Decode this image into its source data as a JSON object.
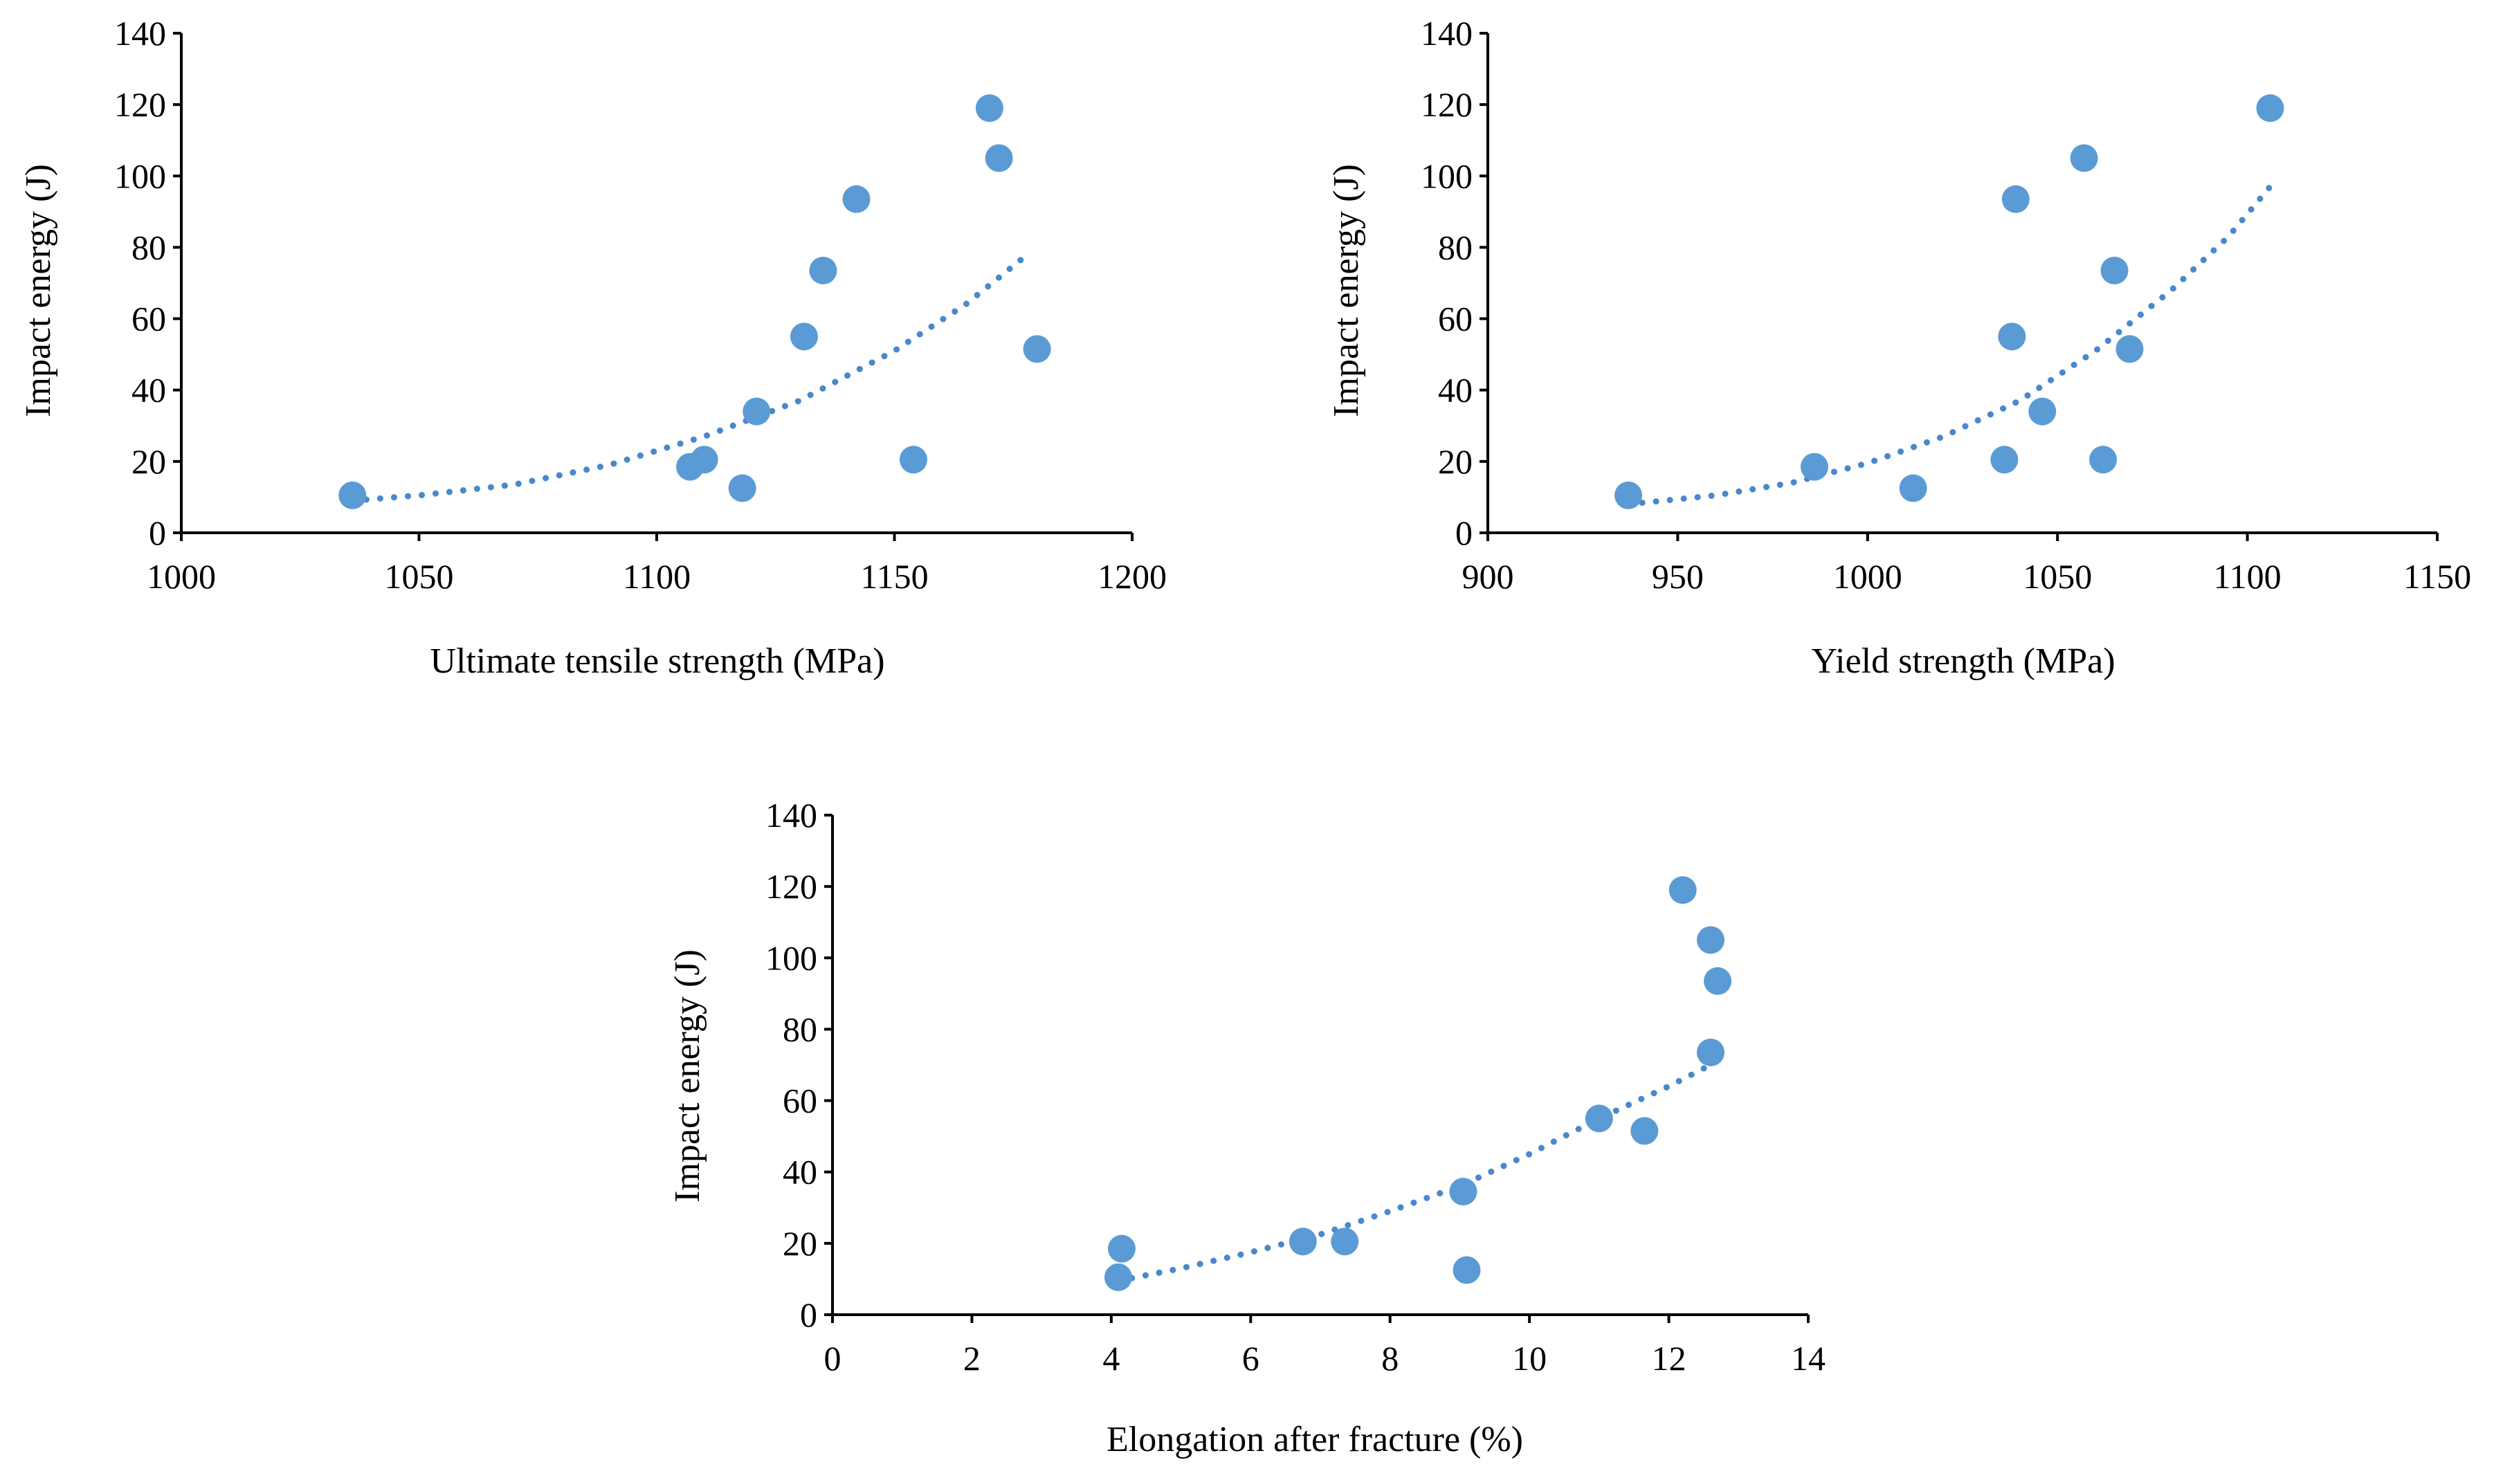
{
  "colors": {
    "marker": "#5B9BD5",
    "trendline": "#4A88CC",
    "axis": "#000000"
  },
  "chart_data": [
    {
      "type": "scatter",
      "name": "uts",
      "xlabel": "Ultimate  tensile strength (MPa)",
      "ylabel": "Impact   energy (J)",
      "xlim": [
        1000,
        1200
      ],
      "ylim": [
        0,
        140
      ],
      "xticks": [
        1000,
        1050,
        1100,
        1150,
        1200
      ],
      "yticks": [
        0,
        20,
        40,
        60,
        80,
        100,
        120,
        140
      ],
      "grid": false,
      "points": [
        {
          "x": 1036,
          "y": 10.5
        },
        {
          "x": 1107,
          "y": 18.5
        },
        {
          "x": 1110,
          "y": 20.5
        },
        {
          "x": 1118,
          "y": 12.5
        },
        {
          "x": 1121,
          "y": 34
        },
        {
          "x": 1131,
          "y": 55
        },
        {
          "x": 1135,
          "y": 73.5
        },
        {
          "x": 1142,
          "y": 93.5
        },
        {
          "x": 1154,
          "y": 20.5
        },
        {
          "x": 1170,
          "y": 119
        },
        {
          "x": 1172,
          "y": 105
        },
        {
          "x": 1180,
          "y": 51.5
        }
      ],
      "trendline": {
        "type": "exponential",
        "x_range": [
          1036,
          1178
        ],
        "points": [
          {
            "x": 1036,
            "y": 9
          },
          {
            "x": 1050,
            "y": 10.5
          },
          {
            "x": 1070,
            "y": 13.5
          },
          {
            "x": 1090,
            "y": 19
          },
          {
            "x": 1110,
            "y": 27
          },
          {
            "x": 1130,
            "y": 37
          },
          {
            "x": 1150,
            "y": 51
          },
          {
            "x": 1165,
            "y": 64
          },
          {
            "x": 1178,
            "y": 78
          }
        ]
      }
    },
    {
      "type": "scatter",
      "name": "ys",
      "xlabel": "Yield  strength (MPa)",
      "ylabel": "Impact   energy (J)",
      "xlim": [
        900,
        1150
      ],
      "ylim": [
        0,
        140
      ],
      "xticks": [
        900,
        950,
        1000,
        1050,
        1100,
        1150
      ],
      "yticks": [
        0,
        20,
        40,
        60,
        80,
        100,
        120,
        140
      ],
      "grid": false,
      "points": [
        {
          "x": 937,
          "y": 10.5
        },
        {
          "x": 986,
          "y": 18.5
        },
        {
          "x": 1012,
          "y": 12.5
        },
        {
          "x": 1036,
          "y": 20.5
        },
        {
          "x": 1038,
          "y": 55
        },
        {
          "x": 1039,
          "y": 93.5
        },
        {
          "x": 1046,
          "y": 34
        },
        {
          "x": 1057,
          "y": 105
        },
        {
          "x": 1062,
          "y": 20.5
        },
        {
          "x": 1065,
          "y": 73.5
        },
        {
          "x": 1069,
          "y": 51.5
        },
        {
          "x": 1106,
          "y": 119
        }
      ],
      "trendline": {
        "type": "exponential",
        "x_range": [
          937,
          1106
        ],
        "points": [
          {
            "x": 937,
            "y": 8
          },
          {
            "x": 960,
            "y": 10.5
          },
          {
            "x": 980,
            "y": 14
          },
          {
            "x": 1000,
            "y": 19.5
          },
          {
            "x": 1020,
            "y": 27
          },
          {
            "x": 1040,
            "y": 37
          },
          {
            "x": 1060,
            "y": 51
          },
          {
            "x": 1080,
            "y": 68
          },
          {
            "x": 1095,
            "y": 83
          },
          {
            "x": 1106,
            "y": 97
          }
        ]
      }
    },
    {
      "type": "scatter",
      "name": "elong",
      "xlabel": "Elongation after fracture (%)",
      "ylabel": "Impact   energy (J)",
      "xlim": [
        0,
        14
      ],
      "ylim": [
        0,
        140
      ],
      "xticks": [
        0,
        2,
        4,
        6,
        8,
        10,
        12,
        14
      ],
      "yticks": [
        0,
        20,
        40,
        60,
        80,
        100,
        120,
        140
      ],
      "grid": false,
      "points": [
        {
          "x": 4.1,
          "y": 10.5
        },
        {
          "x": 4.15,
          "y": 18.5
        },
        {
          "x": 6.75,
          "y": 20.5
        },
        {
          "x": 7.35,
          "y": 20.5
        },
        {
          "x": 9.05,
          "y": 34.5
        },
        {
          "x": 9.1,
          "y": 12.5
        },
        {
          "x": 11.0,
          "y": 55
        },
        {
          "x": 11.65,
          "y": 51.5
        },
        {
          "x": 12.2,
          "y": 119
        },
        {
          "x": 12.6,
          "y": 105
        },
        {
          "x": 12.6,
          "y": 73.5
        },
        {
          "x": 12.7,
          "y": 93.5
        }
      ],
      "trendline": {
        "type": "exponential",
        "x_range": [
          4.1,
          12.6
        ],
        "points": [
          {
            "x": 4.1,
            "y": 9.5
          },
          {
            "x": 5,
            "y": 13
          },
          {
            "x": 6,
            "y": 17.5
          },
          {
            "x": 7,
            "y": 22.5
          },
          {
            "x": 8,
            "y": 29
          },
          {
            "x": 9,
            "y": 36
          },
          {
            "x": 10,
            "y": 45
          },
          {
            "x": 11,
            "y": 55
          },
          {
            "x": 12,
            "y": 64
          },
          {
            "x": 12.6,
            "y": 70
          }
        ]
      }
    }
  ]
}
